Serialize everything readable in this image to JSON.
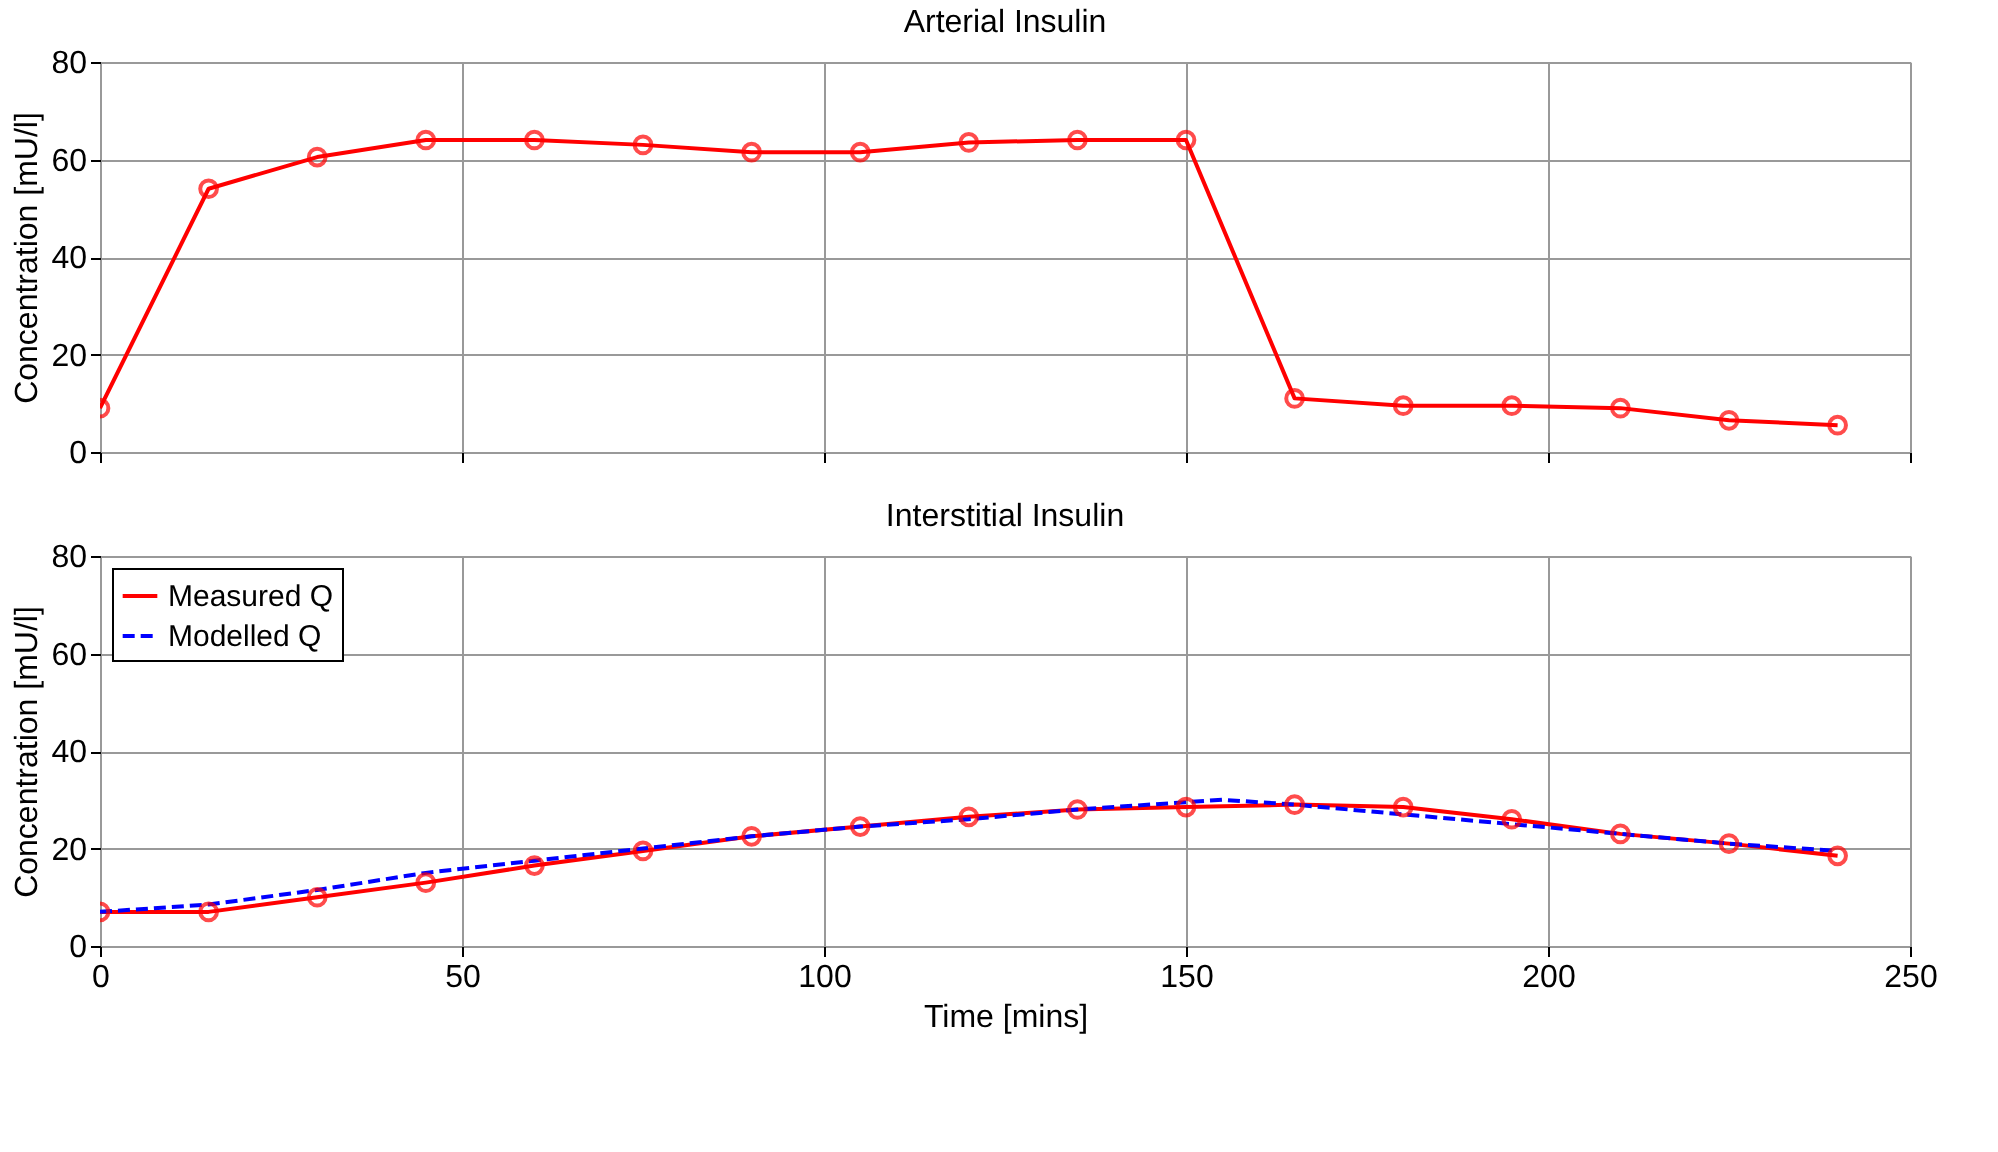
{
  "chart_data": [
    {
      "type": "line",
      "title": "Arterial Insulin",
      "ylabel": "Concentration [mU/l]",
      "xlim": [
        0,
        250
      ],
      "xticks": [
        0,
        50,
        100,
        150,
        200,
        250
      ],
      "ylim": [
        0,
        80
      ],
      "yticks": [
        0,
        20,
        40,
        60,
        80
      ],
      "grid": true,
      "tick_labels": "y",
      "legend": false,
      "series": [
        {
          "color": "#ff0000",
          "marker": "circle",
          "line_style": "solid",
          "x": [
            0,
            15,
            30,
            45,
            60,
            75,
            90,
            105,
            120,
            135,
            150,
            165,
            180,
            195,
            210,
            225,
            240
          ],
          "values": [
            9,
            54,
            60.5,
            64,
            64,
            63,
            61.5,
            61.5,
            63.5,
            64,
            64,
            11,
            9.5,
            9.5,
            9,
            6.5,
            5.5
          ]
        }
      ]
    },
    {
      "type": "line",
      "title": "Interstitial Insulin",
      "xlabel": "Time [mins]",
      "ylabel": "Concentration [mU/l]",
      "xlim": [
        0,
        250
      ],
      "xticks": [
        0,
        50,
        100,
        150,
        200,
        250
      ],
      "ylim": [
        0,
        80
      ],
      "yticks": [
        0,
        20,
        40,
        60,
        80
      ],
      "grid": true,
      "legend": "top left",
      "series": [
        {
          "name": "Measured Q",
          "color": "#ff0000",
          "marker": "circle",
          "line_style": "solid",
          "x": [
            0,
            15,
            30,
            45,
            60,
            75,
            90,
            105,
            120,
            135,
            150,
            165,
            180,
            195,
            210,
            225,
            240
          ],
          "values": [
            7,
            7,
            10,
            13,
            16.5,
            19.5,
            22.5,
            24.5,
            26.5,
            28,
            28.5,
            29,
            28.5,
            26,
            23,
            21,
            18.5
          ]
        },
        {
          "name": "Modelled Q",
          "color": "#0000ff",
          "marker": "none",
          "line_style": "dashed",
          "x": [
            0,
            15,
            30,
            45,
            60,
            75,
            90,
            105,
            120,
            135,
            150,
            155,
            165,
            180,
            195,
            210,
            225,
            240
          ],
          "values": [
            7,
            8.5,
            11.5,
            15,
            17.5,
            20,
            22.5,
            24.5,
            26,
            28,
            29.5,
            30,
            29,
            27,
            25,
            23,
            21,
            19.5
          ]
        }
      ]
    }
  ]
}
